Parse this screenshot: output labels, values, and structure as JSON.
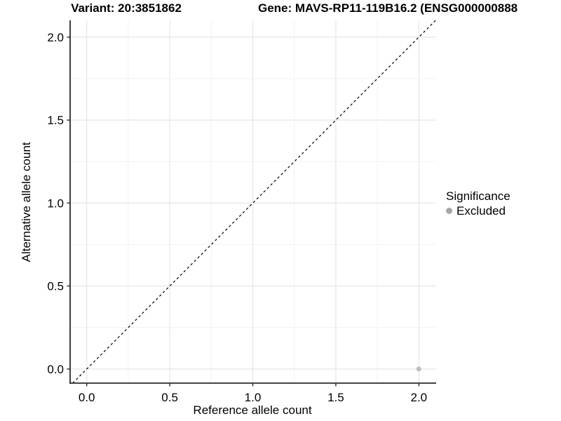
{
  "chart_data": {
    "type": "scatter",
    "titles": [
      "Variant: 20:3851862",
      "Gene: MAVS-RP11-119B16.2 (ENSG000000888"
    ],
    "xlabel": "Reference allele count",
    "ylabel": "Alternative allele count",
    "xlim": [
      -0.1,
      2.1
    ],
    "ylim": [
      -0.085,
      2.101
    ],
    "xticks": [
      0.0,
      0.5,
      1.0,
      1.5,
      2.0
    ],
    "yticks": [
      0.0,
      0.5,
      1.0,
      1.5,
      2.0
    ],
    "xtick_labels": [
      "0.0",
      "0.5",
      "1.0",
      "1.5",
      "2.0"
    ],
    "ytick_labels": [
      "0.0",
      "0.5",
      "1.0",
      "1.5",
      "2.0"
    ],
    "minor_xticks": [
      0.25,
      0.75,
      1.25,
      1.75
    ],
    "minor_yticks": [
      0.25,
      0.75,
      1.25,
      1.75
    ],
    "grid": true,
    "legend": {
      "title": "Significance",
      "position": "right",
      "entries": [
        {
          "label": "Excluded",
          "color": "#A6A6A6"
        }
      ]
    },
    "points": [
      {
        "x": 2.0,
        "y": 0.0,
        "significance": "Excluded"
      }
    ],
    "abline": {
      "slope": 1,
      "intercept": 0,
      "style": "dashed"
    }
  },
  "colors": {
    "background": "#FFFFFF",
    "grid_major": "#E6E6E6",
    "grid_minor": "#F2F2F2",
    "axis_line": "#2B2B2B",
    "tick_mark": "#333333",
    "text": "#000000",
    "point": "#BDBDBD",
    "legend_key": "#A6A6A6",
    "abline": "#111111"
  }
}
